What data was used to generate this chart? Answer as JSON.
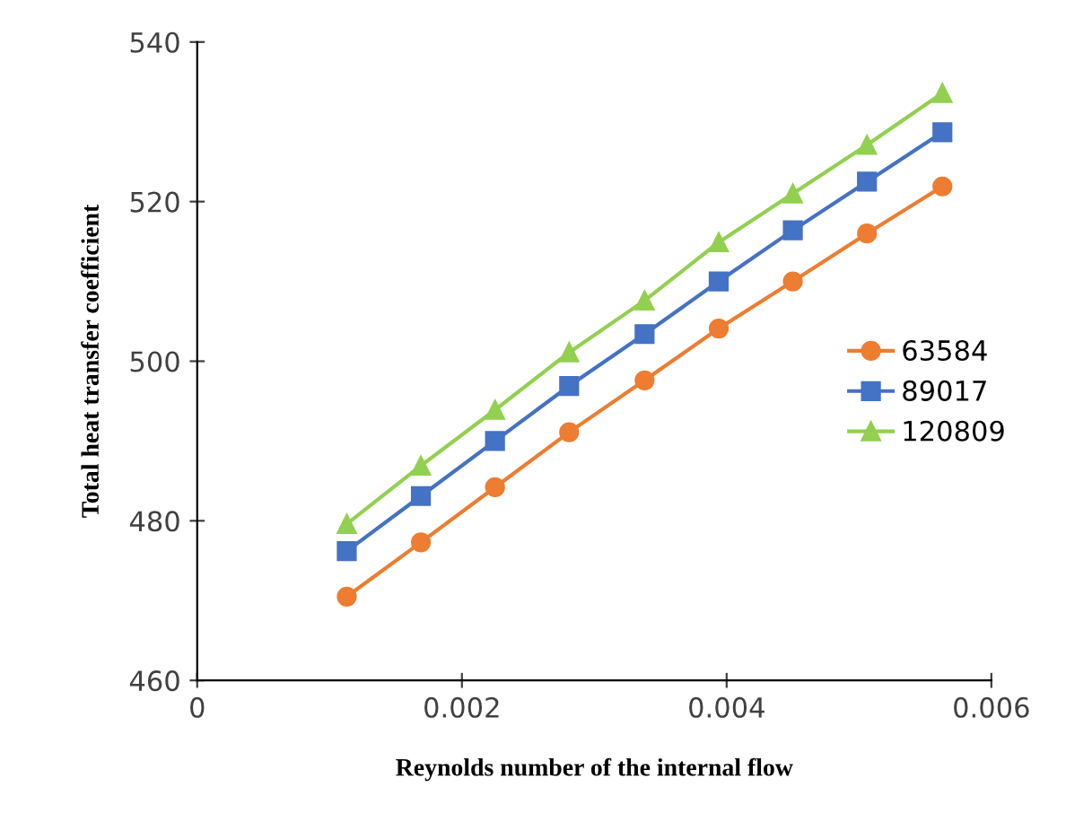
{
  "chart_data": {
    "type": "line",
    "xlabel": "Reynolds number of the internal flow",
    "ylabel": "Total heat transfer coefficient",
    "x": [
      0.00113,
      0.00169,
      0.00225,
      0.00281,
      0.00338,
      0.00394,
      0.0045,
      0.00506,
      0.00563
    ],
    "series": [
      {
        "name": "63584",
        "color": "#ed7d31",
        "marker": "circle",
        "values": [
          470.5,
          477.3,
          484.2,
          491.1,
          497.6,
          504.1,
          510.0,
          516.0,
          521.9
        ]
      },
      {
        "name": "89017",
        "color": "#4472c4",
        "marker": "square",
        "values": [
          476.2,
          483.1,
          490.0,
          496.9,
          503.4,
          510.0,
          516.4,
          522.5,
          528.7
        ]
      },
      {
        "name": "120809",
        "color": "#92d050",
        "marker": "triangle",
        "values": [
          479.6,
          486.9,
          493.9,
          501.1,
          507.6,
          514.9,
          521.0,
          527.1,
          533.6
        ]
      }
    ],
    "xlim": [
      0,
      0.006
    ],
    "xticks": [
      0,
      0.002,
      0.004,
      0.006
    ],
    "ylim": [
      460,
      540
    ],
    "yticks": [
      460,
      480,
      500,
      520,
      540
    ],
    "grid": false,
    "legend": "right",
    "line_style": "solid"
  }
}
